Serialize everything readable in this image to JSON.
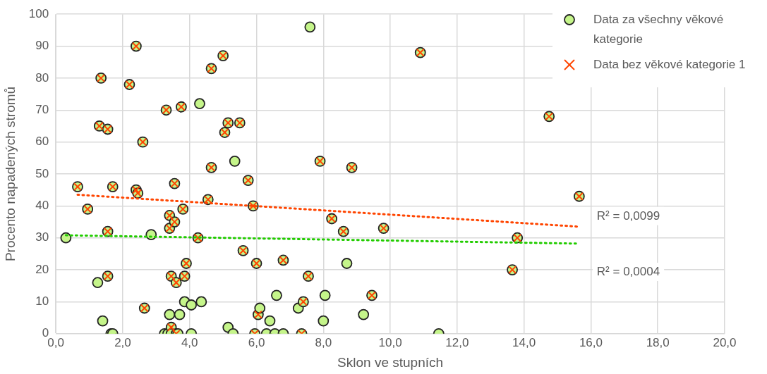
{
  "chart_data": {
    "type": "scatter",
    "xlabel": "Sklon ve stupních",
    "ylabel": "Procento napadených stromů",
    "xlim": [
      0,
      20
    ],
    "xticks": [
      {
        "value": 0,
        "label": "0,0"
      },
      {
        "value": 2,
        "label": "2,0"
      },
      {
        "value": 4,
        "label": "4,0"
      },
      {
        "value": 6,
        "label": "6,0"
      },
      {
        "value": 8,
        "label": "8,0"
      },
      {
        "value": 10,
        "label": "10,0"
      },
      {
        "value": 12,
        "label": "12,0"
      },
      {
        "value": 14,
        "label": "14,0"
      },
      {
        "value": 16,
        "label": "16,0"
      },
      {
        "value": 18,
        "label": "18,0"
      },
      {
        "value": 20,
        "label": "20,0"
      }
    ],
    "ylim": [
      0,
      100
    ],
    "yticks": [
      0,
      10,
      20,
      30,
      40,
      50,
      60,
      70,
      80,
      90,
      100
    ],
    "grid": true,
    "legend": "top right",
    "series": [
      {
        "name": "Data za všechny věkové kategorie",
        "marker": "circle",
        "color": "#c5f58a",
        "x": [
          0.3,
          0.65,
          0.95,
          1.25,
          1.3,
          1.35,
          1.4,
          1.55,
          1.55,
          1.55,
          1.65,
          1.7,
          1.7,
          2.2,
          2.4,
          2.4,
          2.45,
          2.6,
          2.65,
          2.85,
          3.25,
          3.3,
          3.35,
          3.4,
          3.4,
          3.4,
          3.45,
          3.45,
          3.45,
          3.55,
          3.55,
          3.6,
          3.6,
          3.65,
          3.7,
          3.75,
          3.8,
          3.85,
          3.9,
          3.85,
          4.05,
          4.05,
          4.25,
          4.3,
          4.35,
          4.55,
          4.65,
          4.65,
          5.0,
          5.05,
          5.15,
          5.15,
          5.3,
          5.35,
          5.5,
          5.6,
          5.75,
          5.9,
          5.95,
          6.0,
          6.05,
          6.1,
          6.3,
          6.4,
          6.55,
          6.6,
          6.8,
          6.8,
          7.25,
          7.35,
          7.4,
          7.55,
          7.6,
          7.9,
          8.0,
          8.05,
          8.25,
          8.6,
          8.7,
          8.85,
          9.2,
          9.45,
          9.8,
          10.9,
          11.45,
          13.65,
          13.8,
          14.75,
          15.65
        ],
        "values": [
          30,
          46,
          39,
          16,
          65,
          80,
          4,
          18,
          64,
          32,
          0,
          0,
          46,
          78,
          90,
          45,
          44,
          60,
          8,
          31,
          0,
          70,
          0,
          6,
          37,
          33,
          18,
          2,
          0,
          35,
          47,
          0,
          16,
          0,
          6,
          71,
          39,
          18,
          22,
          10,
          0,
          9,
          30,
          72,
          10,
          42,
          83,
          52,
          87,
          63,
          66,
          2,
          0,
          54,
          66,
          26,
          48,
          40,
          0,
          22,
          6,
          8,
          0,
          4,
          0,
          12,
          23,
          0,
          8,
          0,
          10,
          18,
          96,
          54,
          4,
          12,
          36,
          32,
          22,
          52,
          6,
          12,
          33,
          88,
          0,
          20,
          30,
          68,
          43
        ]
      },
      {
        "name": "Data bez věkové kategorie 1",
        "marker": "cross",
        "color": "#ff4500",
        "x": [
          0.65,
          0.95,
          1.3,
          1.35,
          1.55,
          1.55,
          1.55,
          1.7,
          2.2,
          2.4,
          2.4,
          2.45,
          2.6,
          2.65,
          3.3,
          3.4,
          3.4,
          3.45,
          3.45,
          3.55,
          3.55,
          3.6,
          3.6,
          3.75,
          3.8,
          3.85,
          3.9,
          4.25,
          4.55,
          4.65,
          4.65,
          5.0,
          5.05,
          5.15,
          5.5,
          5.6,
          5.75,
          5.9,
          5.95,
          6.0,
          6.05,
          6.8,
          7.35,
          7.4,
          7.55,
          7.9,
          8.25,
          8.6,
          8.85,
          9.45,
          9.8,
          10.9,
          13.65,
          13.8,
          14.75,
          15.65
        ],
        "values": [
          46,
          39,
          65,
          80,
          18,
          64,
          32,
          46,
          78,
          90,
          45,
          44,
          60,
          8,
          70,
          37,
          33,
          18,
          2,
          35,
          47,
          0,
          16,
          71,
          39,
          18,
          22,
          30,
          42,
          83,
          52,
          87,
          63,
          66,
          66,
          26,
          48,
          40,
          0,
          22,
          6,
          23,
          0,
          10,
          18,
          54,
          36,
          32,
          52,
          12,
          33,
          88,
          20,
          30,
          68,
          43
        ]
      },
      {
        "type": "line",
        "color": "#ff4500",
        "line_style": "dotted",
        "x": [
          0.65,
          15.65
        ],
        "values": [
          43.5,
          33.5
        ]
      },
      {
        "type": "line",
        "color": "#22cc00",
        "line_style": "dotted",
        "x": [
          0.3,
          15.65
        ],
        "values": [
          30.8,
          28.2
        ]
      }
    ],
    "annotations": [
      "R² = 0,0099",
      "R² = 0,0004"
    ]
  }
}
